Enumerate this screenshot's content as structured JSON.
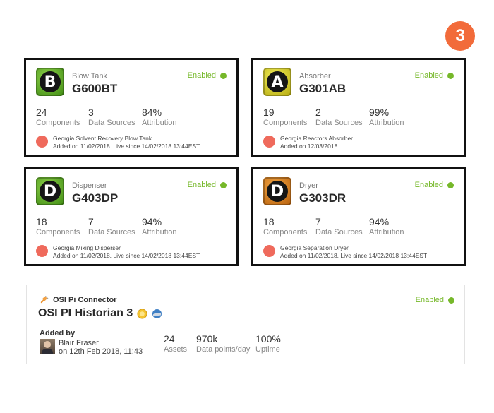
{
  "step_badge": "3",
  "cards": [
    {
      "letter": "B",
      "grade_color": "#58ad23",
      "type": "Blow Tank",
      "id": "G600BT",
      "status": "Enabled",
      "components": "24",
      "components_label": "Components",
      "sources": "3",
      "sources_label": "Data Sources",
      "attribution": "84%",
      "attribution_label": "Attribution",
      "owner_line1": "Georgia Solvent Recovery Blow Tank",
      "owner_line2": "Added on 11/02/2018. Live since 14/02/2018 13:44EST"
    },
    {
      "letter": "A",
      "grade_color": "#d9d128",
      "type": "Absorber",
      "id": "G301AB",
      "status": "Enabled",
      "components": "19",
      "components_label": "Components",
      "sources": "2",
      "sources_label": "Data Sources",
      "attribution": "99%",
      "attribution_label": "Attribution",
      "owner_line1": "Georgia Reactors Absorber",
      "owner_line2": "Added on 12/03/2018."
    },
    {
      "letter": "D",
      "grade_color": "#58ad23",
      "type": "Dispenser",
      "id": "G403DP",
      "status": "Enabled",
      "components": "18",
      "components_label": "Components",
      "sources": "7",
      "sources_label": "Data Sources",
      "attribution": "94%",
      "attribution_label": "Attribution",
      "owner_line1": "Georgia Mixing Disperser",
      "owner_line2": "Added on 11/02/2018. Live since 14/02/2018 13:44EST"
    },
    {
      "letter": "D",
      "grade_color": "#e2861f",
      "type": "Dryer",
      "id": "G303DR",
      "status": "Enabled",
      "components": "18",
      "components_label": "Components",
      "sources": "7",
      "sources_label": "Data Sources",
      "attribution": "94%",
      "attribution_label": "Attribution",
      "owner_line1": "Georgia Separation Dryer",
      "owner_line2": "Added on 11/02/2018. Live since 14/02/2018 13:44EST"
    }
  ],
  "connector": {
    "type": "OSI Pi Connector",
    "title": "OSI PI Historian 3",
    "status": "Enabled",
    "added_by_label": "Added by",
    "user_name": "Blair Fraser",
    "user_date": "on 12th Feb 2018, 11:43",
    "assets": "24",
    "assets_label": "Assets",
    "points": "970k",
    "points_label": "Data points/day",
    "uptime": "100%",
    "uptime_label": "Uptime"
  },
  "colors": {
    "enabled": "#76b82a",
    "owner_dot": "#ef6a5c",
    "step_badge": "#f26b3a"
  }
}
